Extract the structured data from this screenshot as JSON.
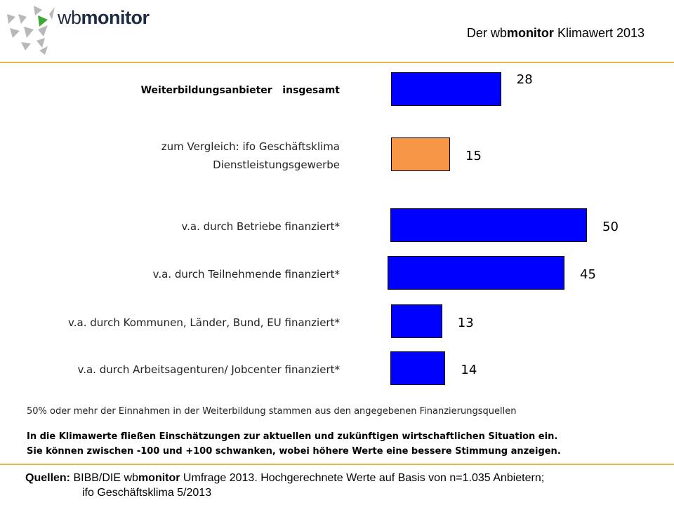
{
  "header": {
    "logo_light": "wb",
    "logo_bold": "monitor",
    "title_pre": "Der wb",
    "title_bold": "monitor",
    "title_post": " Klimawert 2013"
  },
  "chart_data": {
    "type": "bar",
    "orientation": "horizontal",
    "title": "Der wbmonitor Klimawert 2013",
    "categories": [
      "Weiterbildungsanbieter   insgesamt",
      "zum Vergleich: ifo Geschäftsklima\nDienstleistungsgewerbe",
      "v.a. durch Betriebe finanziert*",
      "v.a. durch Teilnehmende finanziert*",
      "v.a. durch Kommunen, Länder, Bund, EU finanziert*",
      "v.a. durch Arbeitsagenturen/ Jobcenter finanziert*"
    ],
    "values": [
      28,
      15,
      50,
      45,
      13,
      14
    ],
    "colors": [
      "#0000ff",
      "#f79646",
      "#0000ff",
      "#0000ff",
      "#0000ff",
      "#0000ff"
    ],
    "bold": [
      true,
      false,
      false,
      false,
      false,
      false
    ],
    "xlim": [
      0,
      50
    ],
    "grid": false,
    "legend": "none"
  },
  "footer": {
    "note": "50% oder mehr der Einnahmen in der Weiterbildung stammen aus den angegebenen Finanzierungsquellen",
    "explanation_1": "In die Klimawerte fließen Einschätzungen zur aktuellen und zukünftigen wirtschaftlichen Situation ein.",
    "explanation_2": "Sie können zwischen -100 und +100 schwanken, wobei höhere Werte eine bessere Stimmung anzeigen.",
    "sources_label": "Quellen:",
    "sources_pre": " BIBB/DIE wb",
    "sources_bold": "monitor",
    "sources_post": " Umfrage 2013. Hochgerechnete Werte auf Basis von n=1.035 Anbietern;",
    "sources_line2": "ifo Geschäftsklima 5/2013"
  }
}
